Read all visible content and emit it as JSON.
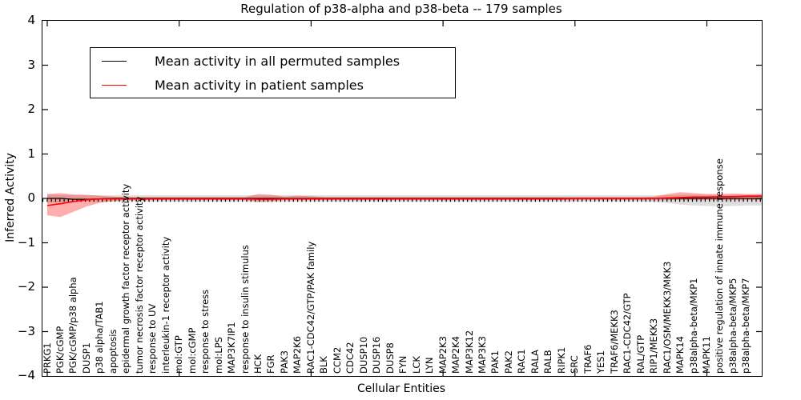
{
  "title": "Regulation of p38-alpha and p38-beta -- 179 samples",
  "axes": {
    "xlabel": "Cellular Entities",
    "ylabel": "Inferred Activity"
  },
  "legend": {
    "items": [
      {
        "label": "Mean activity in all permuted samples",
        "color": "#000000"
      },
      {
        "label": "Mean activity in patient samples",
        "color": "#ff0000"
      }
    ]
  },
  "colors": {
    "permuted_line": "#000000",
    "patient_line": "#ff0000",
    "patient_band": "rgba(255,0,0,0.32)",
    "permuted_band": "rgba(0,0,0,0.13)"
  },
  "chart_data": {
    "type": "line",
    "title": "Regulation of p38-alpha and p38-beta -- 179 samples",
    "xlabel": "Cellular Entities",
    "ylabel": "Inferred Activity",
    "ylim": [
      -4,
      4
    ],
    "yticks": [
      "4",
      "3",
      "2",
      "1",
      "0",
      "−1",
      "−2",
      "−3",
      "−4"
    ],
    "xtick_major_indices": [
      0,
      10,
      20,
      30,
      40,
      50
    ],
    "legend_position": "upper left",
    "grid": false,
    "categories": [
      "PRKG1",
      "PGK/cGMP",
      "PGK/cGMP/p38 alpha",
      "DUSP1",
      "p38 alpha/TAB1",
      "apoptosis",
      "epidermal growth factor receptor activity",
      "tumor necrosis factor receptor activity",
      "response to UV",
      "interleukin-1 receptor activity",
      "mol:GTP",
      "mol:cGMP",
      "response to stress",
      "mol:LPS",
      "MAP3K7IP1",
      "response to insulin stimulus",
      "HCK",
      "FGR",
      "PAK3",
      "MAP2K6",
      "RAC1-CDC42/GTP/PAK family",
      "BLK",
      "CCM2",
      "CDC42",
      "DUSP10",
      "DUSP16",
      "DUSP8",
      "FYN",
      "LCK",
      "LYN",
      "MAP2K3",
      "MAP2K4",
      "MAP3K12",
      "MAP3K3",
      "PAK1",
      "PAK2",
      "RAC1",
      "RALA",
      "RALB",
      "RIPK1",
      "SRC",
      "TRAF6",
      "YES1",
      "TRAF6/MEKK3",
      "RAC1-CDC42/GTP",
      "RAL/GTP",
      "RIP1/MEKK3",
      "RAC1/OSM/MEKK3/MKK3",
      "MAPK14",
      "p38alpha-beta/MKP1",
      "MAPK11",
      "positive regulation of innate immune response",
      "p38alpha-beta/MKP5",
      "p38alpha-beta/MKP7"
    ],
    "series": [
      {
        "name": "Mean activity in all permuted samples",
        "color": "#000000",
        "values": [
          0,
          0,
          -0.02,
          -0.02,
          -0.01,
          0,
          0,
          0,
          0,
          0,
          0,
          0,
          0,
          0,
          0,
          0,
          0,
          0,
          0,
          0,
          0,
          0,
          0,
          0,
          0,
          0,
          0,
          0,
          0,
          0,
          0,
          0,
          0,
          0,
          0,
          0,
          0,
          0,
          0,
          0,
          0,
          0,
          0,
          0,
          0,
          0,
          0,
          0,
          0,
          0,
          0,
          0,
          0,
          0
        ]
      },
      {
        "name": "Mean activity in patient samples",
        "color": "#ff0000",
        "values": [
          -0.16,
          -0.12,
          -0.07,
          -0.03,
          -0.01,
          -0.01,
          -0.01,
          -0.01,
          -0.01,
          -0.01,
          -0.01,
          -0.01,
          -0.01,
          -0.01,
          -0.01,
          -0.01,
          -0.02,
          -0.02,
          -0.01,
          -0.01,
          -0.01,
          -0.01,
          -0.01,
          -0.01,
          -0.01,
          -0.01,
          -0.01,
          -0.01,
          -0.01,
          -0.01,
          -0.01,
          -0.01,
          -0.01,
          -0.01,
          -0.01,
          -0.01,
          -0.01,
          -0.01,
          -0.01,
          -0.01,
          0,
          0,
          0,
          0,
          0,
          0,
          0,
          0.01,
          0.02,
          0.03,
          0.03,
          0.04,
          0.04,
          0.05
        ]
      }
    ],
    "bands": [
      {
        "name": "patient band",
        "color": "rgba(255,0,0,0.32)",
        "upper": [
          0.1,
          0.12,
          0.09,
          0.08,
          0.06,
          0.04,
          0.03,
          0.03,
          0.03,
          0.03,
          0.03,
          0.03,
          0.03,
          0.03,
          0.03,
          0.03,
          0.1,
          0.08,
          0.04,
          0.06,
          0.05,
          0.03,
          0.03,
          0.03,
          0.03,
          0.03,
          0.03,
          0.03,
          0.03,
          0.03,
          0.03,
          0.03,
          0.03,
          0.03,
          0.03,
          0.03,
          0.03,
          0.03,
          0.03,
          0.03,
          0.03,
          0.03,
          0.03,
          0.03,
          0.03,
          0.03,
          0.04,
          0.1,
          0.14,
          0.12,
          0.1,
          0.1,
          0.11,
          0.1
        ],
        "lower": [
          -0.38,
          -0.42,
          -0.3,
          -0.18,
          -0.1,
          -0.06,
          -0.04,
          -0.04,
          -0.04,
          -0.04,
          -0.04,
          -0.04,
          -0.04,
          -0.04,
          -0.04,
          -0.04,
          -0.07,
          -0.06,
          -0.04,
          -0.04,
          -0.04,
          -0.04,
          -0.04,
          -0.04,
          -0.04,
          -0.04,
          -0.04,
          -0.04,
          -0.04,
          -0.04,
          -0.04,
          -0.04,
          -0.04,
          -0.04,
          -0.04,
          -0.04,
          -0.04,
          -0.04,
          -0.04,
          -0.04,
          -0.04,
          -0.04,
          -0.04,
          -0.04,
          -0.04,
          -0.04,
          -0.04,
          -0.04,
          -0.04,
          -0.04,
          -0.04,
          -0.04,
          -0.04,
          -0.04
        ]
      },
      {
        "name": "permuted band",
        "color": "rgba(0,0,0,0.13)",
        "upper": [
          0.09,
          0.08,
          0.07,
          0.07,
          0.07,
          0.07,
          0.07,
          0.07,
          0.07,
          0.07,
          0.07,
          0.07,
          0.07,
          0.07,
          0.07,
          0.07,
          0.07,
          0.07,
          0.07,
          0.07,
          0.07,
          0.07,
          0.07,
          0.07,
          0.07,
          0.07,
          0.07,
          0.07,
          0.07,
          0.07,
          0.07,
          0.07,
          0.07,
          0.07,
          0.07,
          0.07,
          0.07,
          0.07,
          0.07,
          0.07,
          0.07,
          0.07,
          0.07,
          0.07,
          0.07,
          0.07,
          0.07,
          0.07,
          0.08,
          0.08,
          0.08,
          0.08,
          0.08,
          0.08
        ],
        "lower": [
          -0.1,
          -0.09,
          -0.08,
          -0.07,
          -0.07,
          -0.07,
          -0.07,
          -0.07,
          -0.07,
          -0.07,
          -0.07,
          -0.07,
          -0.07,
          -0.07,
          -0.07,
          -0.07,
          -0.09,
          -0.08,
          -0.07,
          -0.07,
          -0.07,
          -0.07,
          -0.07,
          -0.07,
          -0.07,
          -0.07,
          -0.07,
          -0.07,
          -0.07,
          -0.07,
          -0.07,
          -0.07,
          -0.07,
          -0.07,
          -0.07,
          -0.07,
          -0.07,
          -0.07,
          -0.07,
          -0.07,
          -0.07,
          -0.07,
          -0.07,
          -0.07,
          -0.07,
          -0.07,
          -0.08,
          -0.1,
          -0.14,
          -0.16,
          -0.17,
          -0.18,
          -0.17,
          -0.16
        ]
      }
    ]
  }
}
